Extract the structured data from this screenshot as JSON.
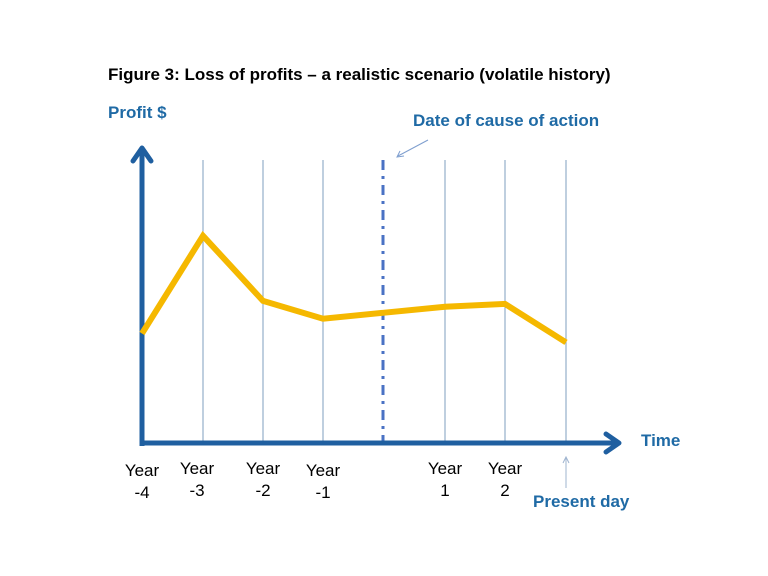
{
  "chart_data": {
    "type": "line",
    "title": "Figure 3: Loss of profits – a realistic scenario (volatile history)",
    "ylabel": "Profit $",
    "xlabel": "Time",
    "categories": [
      "Year -4",
      "Year -3",
      "Year -2",
      "Year -1",
      "Date of cause of action",
      "Year 1",
      "Year 2",
      "Present day"
    ],
    "tick_labels": [
      {
        "line1": "Year",
        "line2": "-4"
      },
      {
        "line1": "Year",
        "line2": "-3"
      },
      {
        "line1": "Year",
        "line2": "-2"
      },
      {
        "line1": "Year",
        "line2": "-1"
      },
      {
        "line1": "",
        "line2": ""
      },
      {
        "line1": "Year",
        "line2": "1"
      },
      {
        "line1": "Year",
        "line2": "2"
      },
      {
        "line1": "",
        "line2": ""
      }
    ],
    "series": [
      {
        "name": "Profit",
        "color": "#f5b800",
        "values": [
          37,
          70,
          48,
          42,
          44,
          46,
          47,
          34
        ]
      }
    ],
    "ylim": [
      0,
      100
    ],
    "grid": "vertical",
    "annotations": {
      "cause_of_action": "Date of cause of action",
      "present_day": "Present day"
    },
    "colors": {
      "axis": "#1f5fa0",
      "label": "#1f6aa5",
      "grid": "#7f9fbf",
      "cause_line": "#4a72c4",
      "series": "#f5b800"
    }
  }
}
